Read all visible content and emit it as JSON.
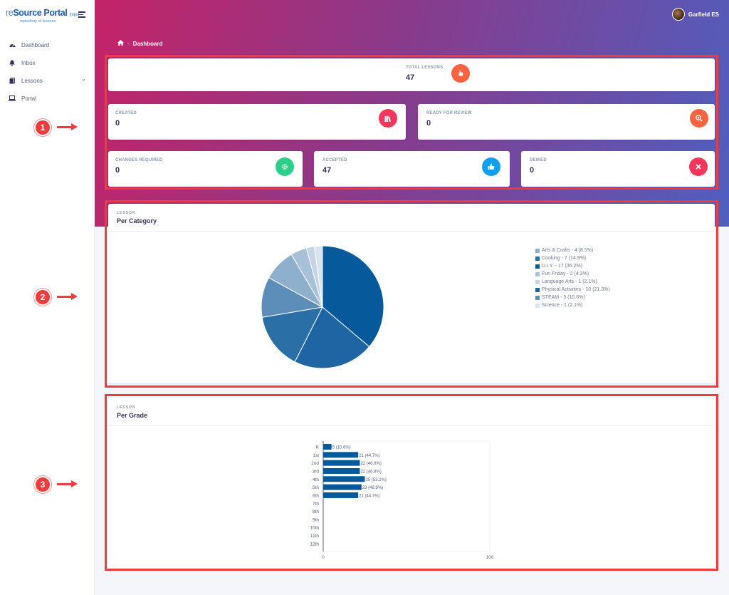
{
  "app": {
    "logo_re": "re",
    "logo_source": "Source Portal",
    "logo_repo": "(repo)",
    "logo_tagline": "repository of lessons"
  },
  "sidebar": {
    "items": [
      {
        "label": "Dashboard",
        "icon": "dashboard-icon"
      },
      {
        "label": "Inbox",
        "icon": "bell-icon"
      },
      {
        "label": "Lessons",
        "icon": "lessons-icon",
        "has_children": true
      },
      {
        "label": "Portal",
        "icon": "laptop-icon"
      }
    ]
  },
  "header": {
    "user_name": "Garfield ES",
    "breadcrumb_current": "Dashboard"
  },
  "stats": {
    "total": {
      "title": "TOTAL LESSONS",
      "value": "47",
      "color": "#fb6340",
      "icon": "hand-pointer-icon"
    },
    "created": {
      "title": "CREATED",
      "value": "0",
      "color": "#f5365c",
      "icon": "books-icon"
    },
    "ready": {
      "title": "READY FOR REVIEW",
      "value": "0",
      "color": "#fb6340",
      "icon": "search-plus-icon"
    },
    "changes": {
      "title": "CHANGES REQUIRED",
      "value": "0",
      "color": "#2dce89",
      "icon": "gear-icon"
    },
    "accepted": {
      "title": "ACCEPTED",
      "value": "47",
      "color": "#11a0ef",
      "icon": "thumbs-up-icon"
    },
    "denied": {
      "title": "DENIED",
      "value": "0",
      "color": "#f5365c",
      "icon": "close-icon"
    }
  },
  "category_panel": {
    "subtitle": "LESSON",
    "title": "Per Category"
  },
  "grade_panel": {
    "subtitle": "LESSON",
    "title": "Per Grade"
  },
  "annotations": [
    "1",
    "2",
    "3"
  ],
  "chart_data": [
    {
      "type": "pie",
      "categories": [
        "Arts & Crafts",
        "Cooking",
        "D.I.Y.",
        "Fun Friday",
        "Language Arts",
        "Physical Activities",
        "STEAM",
        "Science"
      ],
      "values": [
        4,
        7,
        17,
        2,
        1,
        10,
        5,
        1
      ],
      "legend": [
        "Arts & Crafts - 4 (8.5%)",
        "Cooking - 7 (14.9%)",
        "D.I.Y. - 17 (36.2%)",
        "Fun Friday - 2 (4.3%)",
        "Language Arts - 1 (2.1%)",
        "Physical Activities - 10 (21.3%)",
        "STEAM - 5 (10.6%)",
        "Science - 1 (2.1%)"
      ],
      "colors": [
        "#8fb0cc",
        "#2a6fa6",
        "#065a9c",
        "#a7c1d8",
        "#c4d6e6",
        "#1f65a3",
        "#5d8db9",
        "#d9e4ef"
      ],
      "legend_position": "right"
    },
    {
      "type": "bar",
      "orientation": "horizontal",
      "categories": [
        "K",
        "1st",
        "2nd",
        "3rd",
        "4th",
        "5th",
        "6th",
        "7th",
        "8th",
        "9th",
        "10th",
        "11th",
        "12th"
      ],
      "values": [
        5,
        21,
        22,
        22,
        25,
        23,
        21,
        0,
        0,
        0,
        0,
        0,
        0
      ],
      "data_labels": [
        "5 (10.6%)",
        "21 (44.7%)",
        "22 (46.8%)",
        "22 (46.8%)",
        "25 (53.2%)",
        "23 (48.9%)",
        "21 (44.7%)",
        "",
        "",
        "",
        "",
        "",
        ""
      ],
      "xlim": [
        0,
        100
      ],
      "xticks": [
        "0",
        "100"
      ],
      "bar_color": "#065a9c"
    }
  ]
}
